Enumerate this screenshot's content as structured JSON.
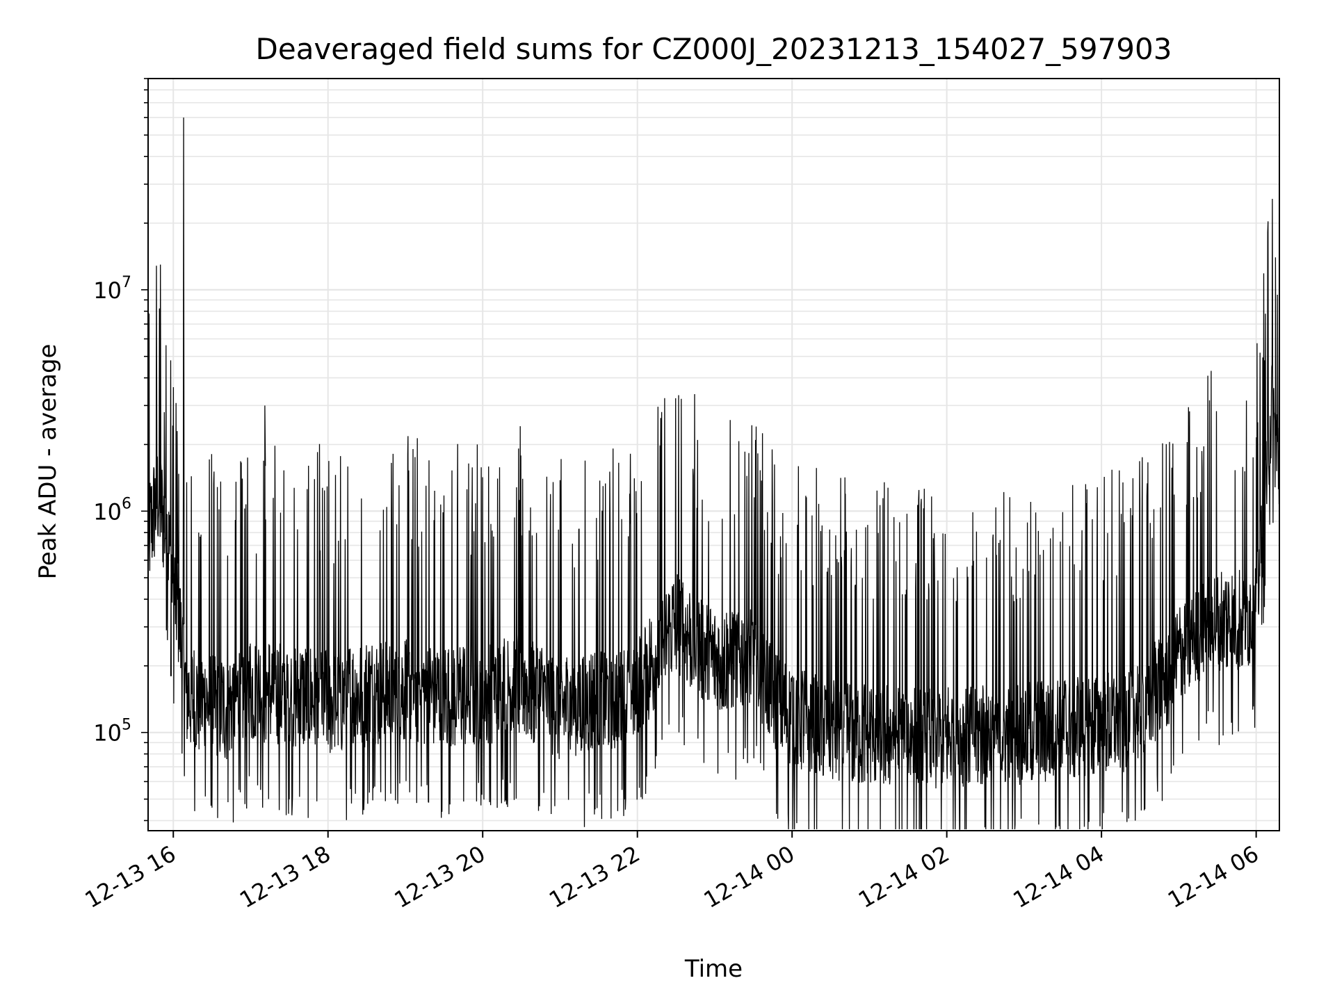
{
  "chart_data": {
    "type": "line",
    "title": "Deaveraged field sums for CZ000J_20231213_154027_597903",
    "xlabel": "Time",
    "ylabel": "Peak ADU - average",
    "y_scale": "log",
    "ylim": [
      36000,
      90000000
    ],
    "xlim": [
      "2023-12-13T15:40:27",
      "2023-12-14T06:18:00"
    ],
    "grid": true,
    "line_color": "#000000",
    "grid_color": "#e6e6e6",
    "x_ticks": [
      {
        "value": "2023-12-13T16:00:00",
        "label": "12-13 16"
      },
      {
        "value": "2023-12-13T18:00:00",
        "label": "12-13 18"
      },
      {
        "value": "2023-12-13T20:00:00",
        "label": "12-13 20"
      },
      {
        "value": "2023-12-13T22:00:00",
        "label": "12-13 22"
      },
      {
        "value": "2023-12-14T00:00:00",
        "label": "12-14 00"
      },
      {
        "value": "2023-12-14T02:00:00",
        "label": "12-14 02"
      },
      {
        "value": "2023-12-14T04:00:00",
        "label": "12-14 04"
      },
      {
        "value": "2023-12-14T06:00:00",
        "label": "12-14 06"
      }
    ],
    "y_ticks": [
      {
        "value": 100000,
        "base": "10",
        "exp": "5"
      },
      {
        "value": 1000000,
        "base": "10",
        "exp": "6"
      },
      {
        "value": 10000000,
        "base": "10",
        "exp": "7"
      }
    ],
    "series": [
      {
        "x": [
          "2023-12-13T15:40:27",
          "2023-12-13T15:48:00",
          "2023-12-13T15:55:00",
          "2023-12-13T16:00:00",
          "2023-12-13T16:04:00",
          "2023-12-13T16:10:00",
          "2023-12-13T16:20:00",
          "2023-12-13T16:40:00",
          "2023-12-13T17:00:00",
          "2023-12-13T17:30:00",
          "2023-12-13T18:00:00",
          "2023-12-13T18:30:00",
          "2023-12-13T19:00:00",
          "2023-12-13T19:30:00",
          "2023-12-13T20:00:00",
          "2023-12-13T20:30:00",
          "2023-12-13T21:00:00",
          "2023-12-13T21:30:00",
          "2023-12-13T22:00:00",
          "2023-12-13T22:30:00",
          "2023-12-13T23:00:00",
          "2023-12-13T23:30:00",
          "2023-12-13T23:50:00",
          "2023-12-14T00:20:00",
          "2023-12-14T00:50:00",
          "2023-12-14T01:20:00",
          "2023-12-14T01:50:00",
          "2023-12-14T02:20:00",
          "2023-12-14T02:50:00",
          "2023-12-14T03:20:00",
          "2023-12-14T03:50:00",
          "2023-12-14T04:20:00",
          "2023-12-14T04:50:00",
          "2023-12-14T05:20:00",
          "2023-12-14T05:50:00",
          "2023-12-14T06:00:00",
          "2023-12-14T06:05:00",
          "2023-12-14T06:12:00",
          "2023-12-14T06:18:00"
        ],
        "base": [
          750000,
          1200000,
          800000,
          450000,
          350000,
          150000,
          140000,
          130000,
          160000,
          150000,
          140000,
          150000,
          160000,
          150000,
          150000,
          170000,
          130000,
          140000,
          160000,
          320000,
          210000,
          230000,
          130000,
          110000,
          100000,
          100000,
          95000,
          100000,
          100000,
          105000,
          110000,
          115000,
          180000,
          320000,
          330000,
          380000,
          900000,
          3000000,
          1500000
        ],
        "spikes": [
          {
            "x": "2023-12-13T15:47:00",
            "y": 9000000
          },
          {
            "x": "2023-12-13T15:50:00",
            "y": 13000000
          },
          {
            "x": "2023-12-13T15:53:00",
            "y": 2800000
          },
          {
            "x": "2023-12-13T15:58:00",
            "y": 4800000
          },
          {
            "x": "2023-12-13T16:03:00",
            "y": 2300000
          },
          {
            "x": "2023-12-13T16:08:00",
            "y": 60000000
          },
          {
            "x": "2023-12-13T17:11:00",
            "y": 3000000
          },
          {
            "x": "2023-12-13T20:31:00",
            "y": 1400000
          },
          {
            "x": "2023-12-13T21:00:00",
            "y": 1380000
          },
          {
            "x": "2023-12-14T00:41:00",
            "y": 1420000
          },
          {
            "x": "2023-12-14T06:15:00",
            "y": 14000000
          },
          {
            "x": "2023-12-14T06:16:30",
            "y": 9500000
          }
        ]
      }
    ]
  }
}
